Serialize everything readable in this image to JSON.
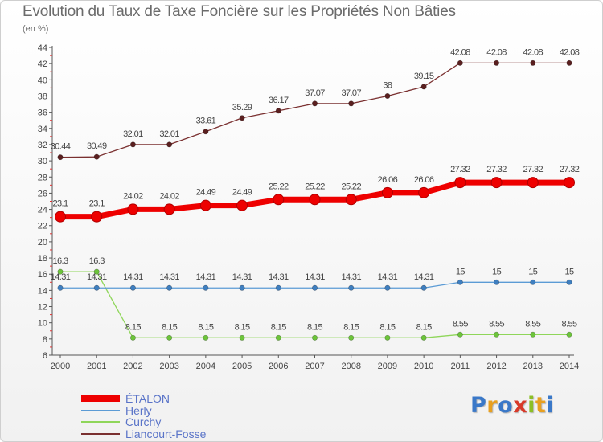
{
  "header": {
    "title": "Evolution du Taux de Taxe Foncière sur les Propriétés Non Bâties",
    "unit": "(en %)"
  },
  "logo": {
    "text": "Proxiti",
    "colors": [
      "#3a78c8",
      "#e8a020",
      "#3a78c8",
      "#d83a2a",
      "#8cbf26",
      "#e8a020",
      "#3a78c8"
    ]
  },
  "chart_data": {
    "type": "line",
    "title": "Evolution du Taux de Taxe Foncière sur les Propriétés Non Bâties",
    "ylabel": "(en %)",
    "xlabel": "",
    "ylim": [
      6,
      44
    ],
    "y_ticks": [
      6,
      8,
      10,
      12,
      14,
      16,
      18,
      20,
      22,
      24,
      26,
      28,
      30,
      32,
      34,
      36,
      38,
      40,
      42,
      44
    ],
    "grid": false,
    "legend_position": "bottom-left",
    "x": [
      "2000",
      "2001",
      "2002",
      "2003",
      "2004",
      "2005",
      "2006",
      "2007",
      "2008",
      "2009",
      "2010",
      "2011",
      "2012",
      "2013",
      "2014"
    ],
    "series": [
      {
        "name": "ÉTALON",
        "color": "#ee0000",
        "marker": "#ee0000",
        "values": [
          23.1,
          23.1,
          24.02,
          24.02,
          24.49,
          24.49,
          25.22,
          25.22,
          25.22,
          26.06,
          26.06,
          27.32,
          27.32,
          27.32,
          27.32
        ]
      },
      {
        "name": "Herly",
        "color": "#5b9bd5",
        "marker": "#3f7fc0",
        "values": [
          14.31,
          14.31,
          14.31,
          14.31,
          14.31,
          14.31,
          14.31,
          14.31,
          14.31,
          14.31,
          14.31,
          15,
          15,
          15,
          15
        ]
      },
      {
        "name": "Curchy",
        "color": "#8fd65a",
        "marker": "#6cc43a",
        "values": [
          16.3,
          16.3,
          8.15,
          8.15,
          8.15,
          8.15,
          8.15,
          8.15,
          8.15,
          8.15,
          8.15,
          8.55,
          8.55,
          8.55,
          8.55
        ]
      },
      {
        "name": "Liancourt-Fosse",
        "color": "#7a3030",
        "marker": "#5a1f1f",
        "values": [
          30.44,
          30.49,
          32.01,
          32.01,
          33.61,
          35.29,
          36.17,
          37.07,
          37.07,
          38,
          39.15,
          42.08,
          42.08,
          42.08,
          42.08
        ]
      }
    ],
    "data_labels": [
      [
        "23.1",
        "23.1",
        "24.02",
        "24.02",
        "24.49",
        "24.49",
        "25.22",
        "25.22",
        "25.22",
        "26.06",
        "26.06",
        "27.32",
        "27.32",
        "27.32",
        "27.32"
      ],
      [
        "14.31",
        "14.31",
        "14.31",
        "14.31",
        "14.31",
        "14.31",
        "14.31",
        "14.31",
        "14.31",
        "14.31",
        "14.31",
        "15",
        "15",
        "15",
        "15"
      ],
      [
        "16.3",
        "16.3",
        "8.15",
        "8.15",
        "8.15",
        "8.15",
        "8.15",
        "8.15",
        "8.15",
        "8.15",
        "8.15",
        "8.55",
        "8.55",
        "8.55",
        "8.55"
      ],
      [
        "30.44",
        "30.49",
        "32.01",
        "32.01",
        "33.61",
        "35.29",
        "36.17",
        "37.07",
        "37.07",
        "38",
        "39.15",
        "42.08",
        "42.08",
        "42.08",
        "42.08"
      ]
    ]
  }
}
